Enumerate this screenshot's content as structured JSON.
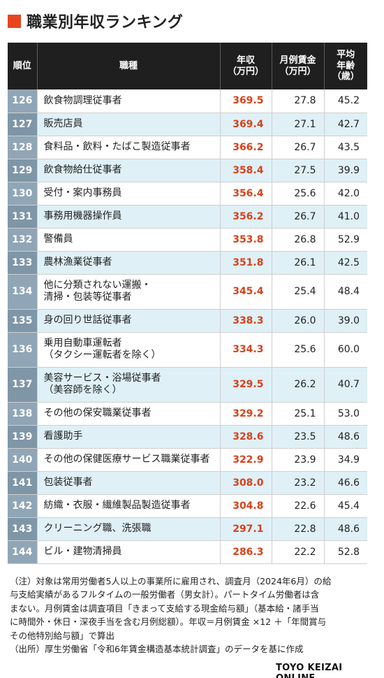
{
  "title": "職業別年収ランキング",
  "headers": {
    "rank": "順位",
    "job": "職種",
    "income_line1": "年収",
    "income_line2": "（万円）",
    "monthly_line1": "月例賃金",
    "monthly_line2": "（万円）",
    "age_line1": "平均",
    "age_line2": "年齢",
    "age_line3": "（歳）"
  },
  "rows": [
    {
      "rank": "126",
      "job": [
        "飲食物調理従事者"
      ],
      "income": "369.5",
      "monthly": "27.8",
      "age": "45.2"
    },
    {
      "rank": "127",
      "job": [
        "販売店員"
      ],
      "income": "369.4",
      "monthly": "27.1",
      "age": "42.7"
    },
    {
      "rank": "128",
      "job": [
        "食料品・飲料・たばこ製造従事者"
      ],
      "income": "366.2",
      "monthly": "26.7",
      "age": "43.5"
    },
    {
      "rank": "129",
      "job": [
        "飲食物給仕従事者"
      ],
      "income": "358.4",
      "monthly": "27.5",
      "age": "39.9"
    },
    {
      "rank": "130",
      "job": [
        "受付・案内事務員"
      ],
      "income": "356.4",
      "monthly": "25.6",
      "age": "42.0"
    },
    {
      "rank": "131",
      "job": [
        "事務用機器操作員"
      ],
      "income": "356.2",
      "monthly": "26.7",
      "age": "41.0"
    },
    {
      "rank": "132",
      "job": [
        "警備員"
      ],
      "income": "353.8",
      "monthly": "26.8",
      "age": "52.9"
    },
    {
      "rank": "133",
      "job": [
        "農林漁業従事者"
      ],
      "income": "351.8",
      "monthly": "26.1",
      "age": "42.5"
    },
    {
      "rank": "134",
      "job": [
        "他に分類されない運搬・",
        "清掃・包装等従事者"
      ],
      "income": "345.4",
      "monthly": "25.4",
      "age": "48.4"
    },
    {
      "rank": "135",
      "job": [
        "身の回り世話従事者"
      ],
      "income": "338.3",
      "monthly": "26.0",
      "age": "39.0"
    },
    {
      "rank": "136",
      "job": [
        "乗用自動車運転者",
        "（タクシー運転者を除く）"
      ],
      "income": "334.3",
      "monthly": "25.6",
      "age": "60.0"
    },
    {
      "rank": "137",
      "job": [
        "美容サービス・浴場従事者",
        "（美容師を除く）"
      ],
      "income": "329.5",
      "monthly": "26.2",
      "age": "40.7"
    },
    {
      "rank": "138",
      "job": [
        "その他の保安職業従事者"
      ],
      "income": "329.2",
      "monthly": "25.1",
      "age": "53.0"
    },
    {
      "rank": "139",
      "job": [
        "看護助手"
      ],
      "income": "328.6",
      "monthly": "23.5",
      "age": "48.6"
    },
    {
      "rank": "140",
      "job": [
        "その他の保健医療サービス職業従事者"
      ],
      "income": "322.9",
      "monthly": "23.9",
      "age": "34.9"
    },
    {
      "rank": "141",
      "job": [
        "包装従事者"
      ],
      "income": "308.0",
      "monthly": "23.2",
      "age": "46.6"
    },
    {
      "rank": "142",
      "job": [
        "紡織・衣服・繊維製品製造従事者"
      ],
      "income": "304.8",
      "monthly": "22.6",
      "age": "45.4"
    },
    {
      "rank": "143",
      "job": [
        "クリーニング職、洗張職"
      ],
      "income": "297.1",
      "monthly": "22.8",
      "age": "48.6"
    },
    {
      "rank": "144",
      "job": [
        "ビル・建物清掃員"
      ],
      "income": "286.3",
      "monthly": "22.2",
      "age": "52.8"
    }
  ],
  "notes": [
    "（注）対象は常用労働者5人以上の事業所に雇用され、調査月（2024年6月）の給",
    "与支給実績があるフルタイムの一般労働者（男女計）。パートタイム労働者は含",
    "まない。月例賃金は調査項目「きまって支給する現金給与額」（基本給・諸手当",
    "に時間外・休日・深夜手当を含む月例総額）。年収＝月例賃金 ×12 ＋「年間賞与",
    "その他特別給与額」で算出",
    "（出所）厚生労働省「令和6年賃金構造基本統計調査」のデータを基に作成"
  ],
  "footer": "TOYO KEIZAI ONLINE",
  "colors": {
    "title_mark": "#e8451e",
    "header_bg": "#1f1f1f",
    "rank_bg": "#90a6b6",
    "income_text": "#d8411a",
    "even_row_bg": "#dff0f7"
  }
}
